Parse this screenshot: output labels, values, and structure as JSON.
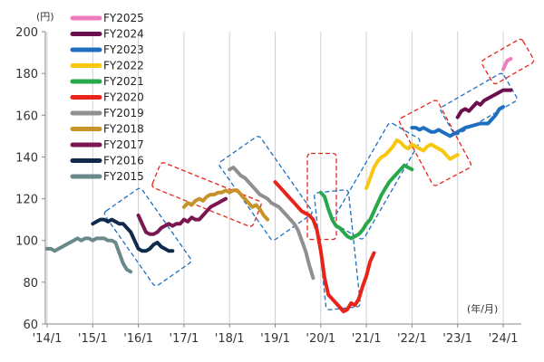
{
  "chart_data": {
    "type": "line",
    "y_unit_label": "(円)",
    "x_unit_label": "(年/月)",
    "ylim": [
      60,
      200
    ],
    "y_ticks": [
      60,
      80,
      100,
      120,
      140,
      160,
      180,
      200
    ],
    "x_ticks": [
      "'14/1",
      "'15/1",
      "'16/1",
      "'17/1",
      "'18/1",
      "'19/1",
      "'20/1",
      "'21/1",
      "'22/1",
      "'23/1",
      "'24/1"
    ],
    "grid": "vertical",
    "legend_position": "top-left",
    "series": [
      {
        "name": "FY2025",
        "color": "#f07cc0",
        "points": [
          [
            "'24/1",
            182
          ],
          [
            "'24/2",
            186
          ],
          [
            "'24/3",
            187
          ]
        ]
      },
      {
        "name": "FY2024",
        "color": "#6b0f4f",
        "points": [
          [
            "'23/1",
            159
          ],
          [
            "'23/2",
            162
          ],
          [
            "'23/3",
            163
          ],
          [
            "'23/4",
            162
          ],
          [
            "'23/5",
            164
          ],
          [
            "'23/6",
            166
          ],
          [
            "'23/7",
            165
          ],
          [
            "'23/8",
            167
          ],
          [
            "'23/9",
            168
          ],
          [
            "'23/10",
            169
          ],
          [
            "'23/11",
            170
          ],
          [
            "'23/12",
            171
          ],
          [
            "'24/1",
            172
          ],
          [
            "'24/2",
            172
          ],
          [
            "'24/3",
            172
          ]
        ]
      },
      {
        "name": "FY2023",
        "color": "#1f6fc0",
        "points": [
          [
            "'22/1",
            154
          ],
          [
            "'22/2",
            154
          ],
          [
            "'22/3",
            153
          ],
          [
            "'22/4",
            154
          ],
          [
            "'22/5",
            153
          ],
          [
            "'22/6",
            152
          ],
          [
            "'22/7",
            152
          ],
          [
            "'22/8",
            153
          ],
          [
            "'22/9",
            152
          ],
          [
            "'22/10",
            151
          ],
          [
            "'22/11",
            150
          ],
          [
            "'22/12",
            151
          ],
          [
            "'23/1",
            152
          ],
          [
            "'23/3",
            154
          ],
          [
            "'23/5",
            155
          ],
          [
            "'23/7",
            156
          ],
          [
            "'23/9",
            156
          ],
          [
            "'23/10",
            158
          ],
          [
            "'23/11",
            160
          ],
          [
            "'23/12",
            163
          ],
          [
            "'24/1",
            164
          ]
        ]
      },
      {
        "name": "FY2022",
        "color": "#f7c80f",
        "points": [
          [
            "'21/1",
            125
          ],
          [
            "'21/2",
            130
          ],
          [
            "'21/3",
            135
          ],
          [
            "'21/4",
            138
          ],
          [
            "'21/5",
            140
          ],
          [
            "'21/6",
            141
          ],
          [
            "'21/7",
            143
          ],
          [
            "'21/8",
            145
          ],
          [
            "'21/9",
            148
          ],
          [
            "'21/10",
            147
          ],
          [
            "'21/11",
            145
          ],
          [
            "'21/12",
            144
          ],
          [
            "'22/1",
            146
          ],
          [
            "'22/2",
            145
          ],
          [
            "'22/3",
            144
          ],
          [
            "'22/4",
            143
          ],
          [
            "'22/5",
            145
          ],
          [
            "'22/6",
            146
          ],
          [
            "'22/7",
            145
          ],
          [
            "'22/8",
            144
          ],
          [
            "'22/9",
            143
          ],
          [
            "'22/10",
            141
          ],
          [
            "'22/11",
            139
          ],
          [
            "'22/12",
            140
          ],
          [
            "'23/1",
            141
          ]
        ]
      },
      {
        "name": "FY2021",
        "color": "#27a84a",
        "points": [
          [
            "'20/1",
            123
          ],
          [
            "'20/2",
            121
          ],
          [
            "'20/3",
            115
          ],
          [
            "'20/4",
            110
          ],
          [
            "'20/5",
            107
          ],
          [
            "'20/6",
            106
          ],
          [
            "'20/7",
            104
          ],
          [
            "'20/8",
            102
          ],
          [
            "'20/9",
            101
          ],
          [
            "'20/10",
            102
          ],
          [
            "'20/11",
            103
          ],
          [
            "'20/12",
            105
          ],
          [
            "'21/1",
            108
          ],
          [
            "'21/2",
            110
          ],
          [
            "'21/3",
            114
          ],
          [
            "'21/4",
            118
          ],
          [
            "'21/5",
            122
          ],
          [
            "'21/6",
            125
          ],
          [
            "'21/7",
            128
          ],
          [
            "'21/8",
            130
          ],
          [
            "'21/9",
            132
          ],
          [
            "'21/10",
            134
          ],
          [
            "'21/11",
            136
          ],
          [
            "'21/12",
            135
          ],
          [
            "'22/1",
            134
          ]
        ]
      },
      {
        "name": "FY2020",
        "color": "#e8231a",
        "points": [
          [
            "'19/1",
            128
          ],
          [
            "'19/2",
            126
          ],
          [
            "'19/3",
            124
          ],
          [
            "'19/4",
            122
          ],
          [
            "'19/5",
            120
          ],
          [
            "'19/6",
            118
          ],
          [
            "'19/7",
            116
          ],
          [
            "'19/8",
            114
          ],
          [
            "'19/9",
            113
          ],
          [
            "'19/10",
            112
          ],
          [
            "'19/11",
            110
          ],
          [
            "'19/12",
            105
          ],
          [
            "'20/1",
            95
          ],
          [
            "'20/2",
            82
          ],
          [
            "'20/3",
            74
          ],
          [
            "'20/4",
            72
          ],
          [
            "'20/5",
            70
          ],
          [
            "'20/6",
            68
          ],
          [
            "'20/7",
            66
          ],
          [
            "'20/8",
            67
          ],
          [
            "'20/9",
            70
          ],
          [
            "'20/10",
            69
          ],
          [
            "'20/11",
            72
          ],
          [
            "'20/12",
            78
          ],
          [
            "'21/1",
            83
          ],
          [
            "'21/2",
            90
          ],
          [
            "'21/3",
            94
          ]
        ]
      },
      {
        "name": "FY2019",
        "color": "#909090",
        "points": [
          [
            "'18/1",
            134
          ],
          [
            "'18/2",
            135
          ],
          [
            "'18/3",
            133
          ],
          [
            "'18/4",
            131
          ],
          [
            "'18/5",
            130
          ],
          [
            "'18/6",
            128
          ],
          [
            "'18/7",
            126
          ],
          [
            "'18/8",
            124
          ],
          [
            "'18/9",
            122
          ],
          [
            "'18/10",
            121
          ],
          [
            "'18/11",
            120
          ],
          [
            "'18/12",
            118
          ],
          [
            "'19/1",
            117
          ],
          [
            "'19/2",
            116
          ],
          [
            "'19/3",
            114
          ],
          [
            "'19/4",
            112
          ],
          [
            "'19/5",
            110
          ],
          [
            "'19/6",
            108
          ],
          [
            "'19/7",
            105
          ],
          [
            "'19/8",
            100
          ],
          [
            "'19/9",
            95
          ],
          [
            "'19/10",
            88
          ],
          [
            "'19/11",
            82
          ]
        ]
      },
      {
        "name": "FY2018",
        "color": "#c8942a",
        "points": [
          [
            "'17/1",
            116
          ],
          [
            "'17/2",
            118
          ],
          [
            "'17/3",
            117
          ],
          [
            "'17/4",
            119
          ],
          [
            "'17/5",
            120
          ],
          [
            "'17/6",
            119
          ],
          [
            "'17/7",
            121
          ],
          [
            "'17/8",
            122
          ],
          [
            "'17/9",
            122
          ],
          [
            "'17/10",
            123
          ],
          [
            "'17/11",
            123
          ],
          [
            "'17/12",
            124
          ],
          [
            "'18/1",
            123
          ],
          [
            "'18/2",
            124
          ],
          [
            "'18/3",
            124
          ],
          [
            "'18/4",
            122
          ],
          [
            "'18/5",
            120
          ],
          [
            "'18/6",
            118
          ],
          [
            "'18/7",
            116
          ],
          [
            "'18/8",
            117
          ],
          [
            "'18/9",
            115
          ],
          [
            "'18/10",
            112
          ],
          [
            "'18/11",
            110
          ]
        ]
      },
      {
        "name": "FY2017",
        "color": "#7a1650",
        "points": [
          [
            "'16/1",
            112
          ],
          [
            "'16/2",
            108
          ],
          [
            "'16/3",
            104
          ],
          [
            "'16/4",
            103
          ],
          [
            "'16/5",
            103
          ],
          [
            "'16/6",
            104
          ],
          [
            "'16/7",
            106
          ],
          [
            "'16/8",
            107
          ],
          [
            "'16/9",
            108
          ],
          [
            "'16/10",
            107
          ],
          [
            "'16/11",
            108
          ],
          [
            "'16/12",
            108
          ],
          [
            "'17/1",
            110
          ],
          [
            "'17/2",
            109
          ],
          [
            "'17/3",
            111
          ],
          [
            "'17/4",
            110
          ],
          [
            "'17/5",
            110
          ],
          [
            "'17/6",
            112
          ],
          [
            "'17/7",
            114
          ],
          [
            "'17/8",
            116
          ],
          [
            "'17/9",
            117
          ],
          [
            "'17/10",
            118
          ],
          [
            "'17/11",
            119
          ],
          [
            "'17/12",
            120
          ]
        ]
      },
      {
        "name": "FY2016",
        "color": "#0f2a4a",
        "points": [
          [
            "'15/1",
            108
          ],
          [
            "'15/2",
            109
          ],
          [
            "'15/3",
            110
          ],
          [
            "'15/4",
            110
          ],
          [
            "'15/5",
            109
          ],
          [
            "'15/6",
            110
          ],
          [
            "'15/7",
            109
          ],
          [
            "'15/8",
            108
          ],
          [
            "'15/9",
            108
          ],
          [
            "'15/10",
            106
          ],
          [
            "'15/11",
            104
          ],
          [
            "'15/12",
            100
          ],
          [
            "'16/1",
            96
          ],
          [
            "'16/2",
            95
          ],
          [
            "'16/3",
            95
          ],
          [
            "'16/4",
            96
          ],
          [
            "'16/5",
            98
          ],
          [
            "'16/6",
            99
          ],
          [
            "'16/7",
            97
          ],
          [
            "'16/8",
            96
          ],
          [
            "'16/9",
            95
          ],
          [
            "'16/10",
            95
          ]
        ]
      },
      {
        "name": "FY2015",
        "color": "#6a8a8a",
        "points": [
          [
            "'14/1",
            96
          ],
          [
            "'14/2",
            96
          ],
          [
            "'14/3",
            95
          ],
          [
            "'14/4",
            96
          ],
          [
            "'14/5",
            97
          ],
          [
            "'14/6",
            98
          ],
          [
            "'14/7",
            99
          ],
          [
            "'14/8",
            100
          ],
          [
            "'14/9",
            101
          ],
          [
            "'14/10",
            100
          ],
          [
            "'14/11",
            101
          ],
          [
            "'14/12",
            101
          ],
          [
            "'15/1",
            100
          ],
          [
            "'15/2",
            101
          ],
          [
            "'15/3",
            101
          ],
          [
            "'15/4",
            101
          ],
          [
            "'15/5",
            100
          ],
          [
            "'15/6",
            100
          ],
          [
            "'15/7",
            99
          ],
          [
            "'15/8",
            94
          ],
          [
            "'15/9",
            89
          ],
          [
            "'15/10",
            86
          ],
          [
            "'15/11",
            85
          ]
        ]
      }
    ],
    "highlight_boxes": [
      {
        "style": "dashed",
        "color": "#1f6fc0"
      },
      {
        "style": "dashed",
        "color": "#e8231a"
      },
      {
        "style": "dashed",
        "color": "#1f6fc0"
      },
      {
        "style": "dashed",
        "color": "#e8231a"
      },
      {
        "style": "dashed",
        "color": "#1f6fc0"
      },
      {
        "style": "dashed",
        "color": "#1f6fc0"
      },
      {
        "style": "dashed",
        "color": "#e8231a"
      },
      {
        "style": "dashed",
        "color": "#1f6fc0"
      },
      {
        "style": "dashed",
        "color": "#e8231a"
      },
      {
        "style": "dashed",
        "color": "#e8231a"
      }
    ]
  }
}
